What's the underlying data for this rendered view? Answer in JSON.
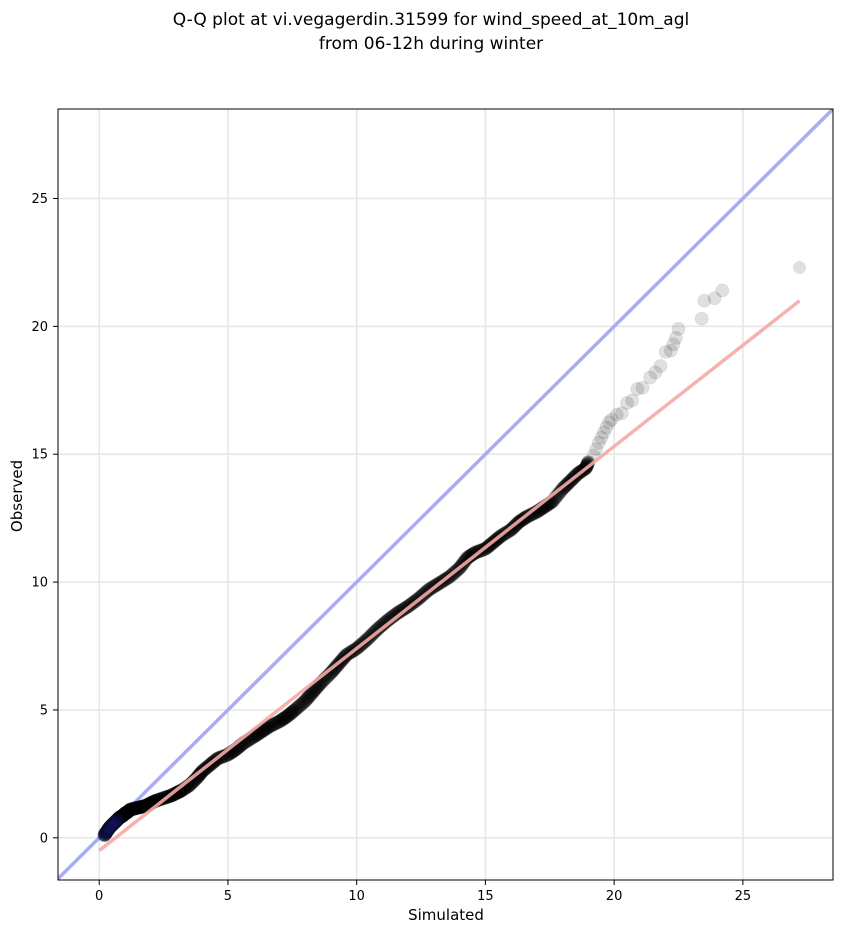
{
  "chart_data": {
    "type": "scatter",
    "title_lines": [
      "Q-Q plot at vi.vegagerdin.31599 for wind_speed_at_10m_agl",
      "from 06-12h during winter"
    ],
    "xlabel": "Simulated",
    "ylabel": "Observed",
    "xlim": [
      -1.6,
      28.5
    ],
    "ylim": [
      -1.65,
      28.5
    ],
    "xticks": [
      0,
      5,
      10,
      15,
      20,
      25
    ],
    "yticks": [
      0,
      5,
      10,
      15,
      20,
      25
    ],
    "grid": true,
    "reference_line": {
      "name": "y = x",
      "color": "#a8adf2"
    },
    "fit_line": {
      "color": "#f5a9a9",
      "x": [
        0.0,
        27.2
      ],
      "y": [
        -0.5,
        21.0
      ]
    },
    "point_color": "#000000",
    "series": [
      {
        "x": [
          0.2,
          0.3,
          0.4,
          0.5,
          0.6,
          0.7,
          0.8,
          0.9,
          1.0,
          1.1,
          1.2,
          1.4,
          1.6,
          1.8,
          2.0,
          2.2,
          2.5,
          2.8,
          3.0,
          3.2,
          3.5,
          3.8,
          4.0,
          4.3,
          4.6,
          5.0,
          5.3,
          5.6,
          6.0,
          6.3,
          6.6,
          7.0,
          7.3,
          7.6,
          8.0,
          8.3,
          8.6,
          9.0,
          9.3,
          9.6,
          10.0,
          10.4,
          10.8,
          11.2,
          11.6,
          12.0,
          12.4,
          12.8,
          13.2,
          13.6,
          14.0,
          14.3,
          14.6,
          15.0,
          15.3,
          15.6,
          16.0,
          16.3,
          16.6,
          17.0,
          17.3,
          17.6,
          18.0,
          18.3,
          18.6,
          18.9,
          19.0,
          19.2,
          19.3,
          19.4,
          19.5,
          19.6,
          19.7,
          19.8,
          19.9,
          20.1,
          20.3,
          20.5,
          20.7,
          20.9,
          21.1,
          21.4,
          21.6,
          21.8,
          22.0,
          22.2,
          22.3,
          22.4,
          22.5,
          23.4,
          23.5,
          23.9,
          24.2,
          27.2
        ],
        "y": [
          0.1,
          0.25,
          0.4,
          0.5,
          0.6,
          0.7,
          0.8,
          0.85,
          0.95,
          1.0,
          1.1,
          1.15,
          1.2,
          1.25,
          1.35,
          1.45,
          1.55,
          1.65,
          1.75,
          1.85,
          2.05,
          2.35,
          2.6,
          2.85,
          3.1,
          3.25,
          3.45,
          3.7,
          3.95,
          4.15,
          4.35,
          4.55,
          4.75,
          5.0,
          5.35,
          5.7,
          6.05,
          6.45,
          6.8,
          7.15,
          7.4,
          7.75,
          8.15,
          8.5,
          8.8,
          9.05,
          9.35,
          9.7,
          9.95,
          10.2,
          10.55,
          10.95,
          11.15,
          11.3,
          11.55,
          11.8,
          12.05,
          12.35,
          12.55,
          12.75,
          12.95,
          13.15,
          13.65,
          13.95,
          14.25,
          14.45,
          14.7,
          14.95,
          15.2,
          15.45,
          15.65,
          15.85,
          16.05,
          16.25,
          16.35,
          16.55,
          16.6,
          17.0,
          17.1,
          17.55,
          17.6,
          18.0,
          18.2,
          18.45,
          19.0,
          19.05,
          19.3,
          19.55,
          19.9,
          20.3,
          21.0,
          21.1,
          21.4,
          22.3
        ]
      }
    ]
  }
}
